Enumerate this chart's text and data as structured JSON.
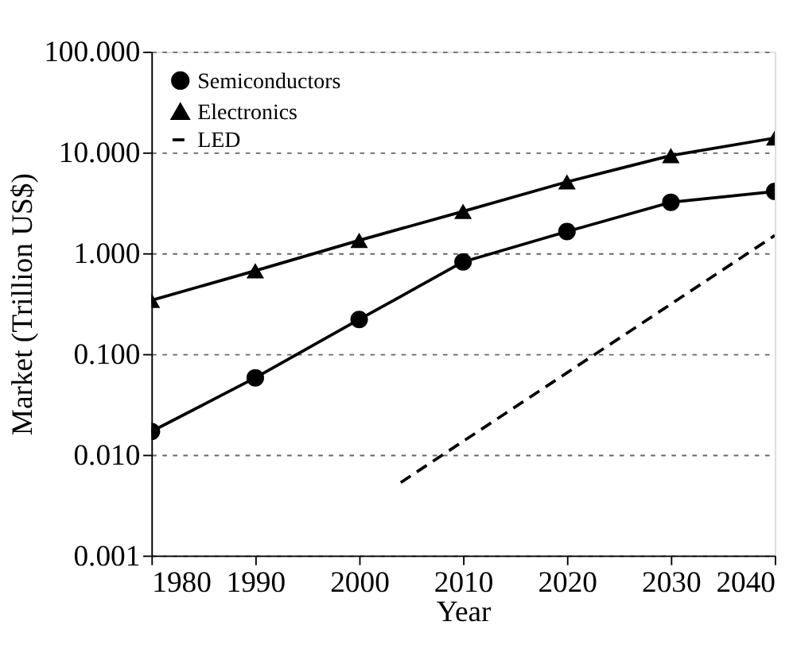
{
  "chart_data": {
    "type": "line",
    "xlabel": "Year",
    "ylabel": "Market (Trillion US$)",
    "log": "y",
    "grid": "y",
    "legend": "top left",
    "xlim": [
      1980,
      2040
    ],
    "xticks": [
      1980,
      1990,
      2000,
      2010,
      2020,
      2030,
      2040
    ],
    "ylim": [
      0.001,
      100
    ],
    "yticks": [
      {
        "value": 0.001,
        "label": "0.001"
      },
      {
        "value": 0.01,
        "label": "0.010"
      },
      {
        "value": 0.1,
        "label": "0.100"
      },
      {
        "value": 1,
        "label": "1.000"
      },
      {
        "value": 10,
        "label": "10.000"
      },
      {
        "value": 100,
        "label": "100.000"
      }
    ],
    "series": [
      {
        "name": "Semiconductors",
        "color": "#000000",
        "marker": "circle",
        "line_style": "solid",
        "x": [
          1980,
          1990,
          2000,
          2010,
          2020,
          2030,
          2040
        ],
        "values": [
          0.017,
          0.058,
          0.22,
          0.82,
          1.64,
          3.2,
          4.1
        ]
      },
      {
        "name": "Electronics",
        "color": "#000000",
        "marker": "triangle",
        "line_style": "solid",
        "x": [
          1980,
          1990,
          2000,
          2010,
          2020,
          2030,
          2040
        ],
        "values": [
          0.34,
          0.67,
          1.34,
          2.6,
          5.1,
          9.3,
          13.9
        ]
      },
      {
        "name": "LED",
        "color": "#000000",
        "marker": "none",
        "line_style": "dashed",
        "x": [
          2004,
          2020,
          2040
        ],
        "values": [
          0.0053,
          0.065,
          1.5
        ]
      }
    ]
  }
}
